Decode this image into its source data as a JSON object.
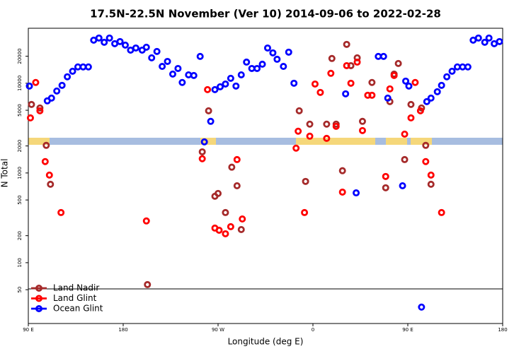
{
  "chart_data": {
    "type": "scatter",
    "title": "17.5N-22.5N November (Ver 10)   2014-09-06 to 2022-02-28",
    "x_label": "Longitude (deg E)",
    "y_label": "N Total",
    "xlim": [
      90,
      540
    ],
    "ylim": [
      21,
      41000
    ],
    "y_scale": "log",
    "legend": "bottom-left",
    "xticks": [
      {
        "value": 90,
        "label": "90 E"
      },
      {
        "value": 180,
        "label": "180"
      },
      {
        "value": 270,
        "label": "90 W"
      },
      {
        "value": 360,
        "label": "0"
      },
      {
        "value": 450,
        "label": "90 E"
      },
      {
        "value": 540,
        "label": "180"
      }
    ],
    "yticks": [
      50,
      100,
      200,
      500,
      1000,
      2000,
      5000,
      10000,
      20000
    ],
    "series": [
      {
        "name": "Land Nadir",
        "color": "#a52a2a",
        "x": [
          93,
          101,
          107,
          111,
          203,
          255,
          261,
          267,
          270,
          277,
          283,
          288,
          292,
          347,
          353,
          357,
          373,
          378,
          382,
          388,
          392,
          396,
          402,
          407,
          416,
          429,
          433,
          437,
          441,
          447,
          453,
          463,
          467,
          472
        ],
        "values": [
          5800,
          5300,
          2030,
          748,
          57,
          1720,
          4930,
          550,
          591,
          362,
          1160,
          720,
          234,
          4930,
          805,
          3500,
          3500,
          18870,
          3500,
          1060,
          27100,
          15700,
          19200,
          3760,
          10200,
          684,
          6240,
          12650,
          16600,
          1410,
          5800,
          5300,
          2030,
          748
        ]
      },
      {
        "name": "Land Glint",
        "color": "#ff0000",
        "x": [
          92,
          97,
          101,
          106,
          110,
          121,
          202,
          255,
          260,
          267,
          271,
          277,
          282,
          288,
          293,
          344,
          346,
          352,
          357,
          362,
          367,
          373,
          377,
          382,
          388,
          392,
          396,
          402,
          407,
          412,
          416,
          429,
          433,
          437,
          447,
          453,
          457,
          462,
          467,
          472,
          482
        ],
        "values": [
          4110,
          10200,
          4930,
          1340,
          947,
          362,
          292,
          1440,
          8490,
          243,
          230,
          210,
          252,
          1410,
          307,
          1890,
          2920,
          362,
          2570,
          9800,
          7900,
          2430,
          12900,
          3310,
          612,
          15700,
          10000,
          17200,
          2970,
          7350,
          7350,
          914,
          8650,
          12200,
          2710,
          4110,
          10200,
          4930,
          1340,
          947,
          362
        ]
      },
      {
        "name": "Ocean Glint",
        "color": "#0000ff",
        "x": [
          91,
          108,
          112,
          117,
          122,
          127,
          132,
          137,
          142,
          147,
          152,
          157,
          162,
          167,
          172,
          177,
          182,
          187,
          192,
          198,
          202,
          207,
          212,
          217,
          222,
          227,
          232,
          236,
          242,
          247,
          253,
          257,
          263,
          267,
          272,
          277,
          282,
          287,
          292,
          297,
          302,
          307,
          312,
          317,
          322,
          326,
          332,
          337,
          342,
          391,
          401,
          422,
          427,
          431,
          445,
          448,
          451,
          463,
          468,
          472,
          478,
          482,
          487,
          492,
          497,
          502,
          507,
          512,
          517,
          523,
          527,
          532,
          537
        ],
        "values": [
          9300,
          6360,
          6830,
          8190,
          9470,
          11800,
          13600,
          15200,
          15200,
          15200,
          30200,
          31900,
          28600,
          31900,
          27600,
          29150,
          26600,
          23400,
          24700,
          23400,
          25200,
          19200,
          22600,
          15400,
          17500,
          12650,
          14600,
          10200,
          12400,
          12200,
          19900,
          2220,
          3760,
          8490,
          9130,
          9800,
          11350,
          9300,
          12400,
          17200,
          14600,
          14600,
          16300,
          24700,
          21800,
          18500,
          15400,
          22200,
          10000,
          7620,
          600,
          19900,
          19900,
          6830,
          720,
          10560,
          9300,
          32,
          6240,
          6830,
          8040,
          9470,
          11800,
          13600,
          15200,
          15200,
          15200,
          30200,
          31900,
          28600,
          31900,
          27600,
          29150
        ]
      }
    ]
  }
}
